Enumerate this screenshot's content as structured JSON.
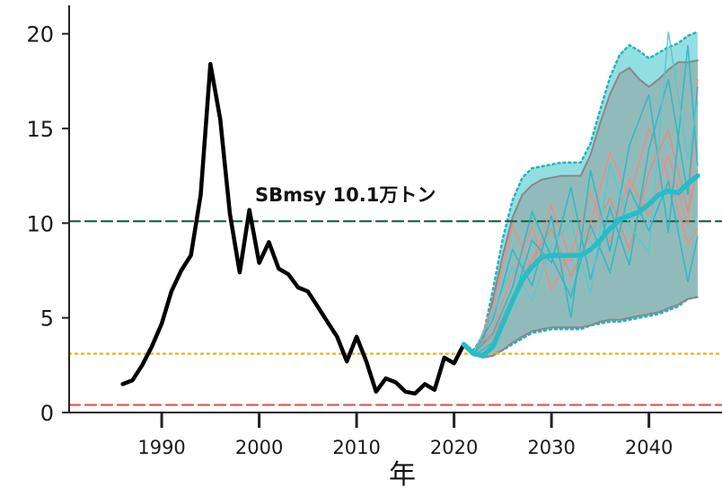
{
  "chart_data": {
    "type": "line",
    "title": "",
    "xlabel": "年",
    "ylabel": "",
    "xlim": [
      1980.5,
      2047.5
    ],
    "ylim": [
      0,
      21.5
    ],
    "x_ticks": [
      1990,
      2000,
      2010,
      2020,
      2030,
      2040
    ],
    "y_ticks": [
      0,
      5,
      10,
      15,
      20
    ],
    "grid": false,
    "annotation": "SBmsy 10.1万トン",
    "reference_lines": [
      {
        "value": 10.1,
        "style": "dashed",
        "color": "#1f5f48"
      },
      {
        "value": 3.1,
        "style": "dotted",
        "color": "#e8b92a"
      },
      {
        "value": 0.4,
        "style": "dashed",
        "color": "#d9534f"
      }
    ],
    "series": [
      {
        "role": "observed",
        "color": "#000000",
        "x": [
          1986,
          1987,
          1988,
          1989,
          1990,
          1991,
          1992,
          1993,
          1994,
          1995,
          1996,
          1997,
          1998,
          1999,
          2000,
          2001,
          2002,
          2003,
          2004,
          2005,
          2006,
          2007,
          2008,
          2009,
          2010,
          2011,
          2012,
          2013,
          2014,
          2015,
          2016,
          2017,
          2018,
          2019,
          2020,
          2021
        ],
        "values": [
          1.5,
          1.7,
          2.5,
          3.5,
          4.7,
          6.4,
          7.5,
          8.3,
          11.5,
          18.4,
          15.5,
          10.5,
          7.4,
          10.7,
          7.9,
          9.0,
          7.6,
          7.3,
          6.6,
          6.4,
          5.6,
          4.8,
          4.0,
          2.7,
          4.0,
          2.7,
          1.1,
          1.8,
          1.6,
          1.1,
          1.0,
          1.5,
          1.2,
          2.9,
          2.6,
          3.6
        ]
      },
      {
        "role": "projection-median",
        "color": "#26bdc8",
        "x": [
          2021,
          2022,
          2023,
          2024,
          2025,
          2026,
          2027,
          2028,
          2029,
          2030,
          2031,
          2032,
          2033,
          2034,
          2035,
          2036,
          2037,
          2038,
          2039,
          2040,
          2041,
          2042,
          2043,
          2044,
          2045
        ],
        "values": [
          3.6,
          3.1,
          3.0,
          3.5,
          4.7,
          5.9,
          7.0,
          7.7,
          8.2,
          8.3,
          8.3,
          8.3,
          8.3,
          8.6,
          9.1,
          9.7,
          10.2,
          10.4,
          10.6,
          11.0,
          11.5,
          11.7,
          11.6,
          12.1,
          12.5
        ]
      },
      {
        "role": "projection-band-outer",
        "color": "#5fd3d8",
        "x": [
          2021,
          2022,
          2023,
          2024,
          2025,
          2026,
          2027,
          2028,
          2029,
          2030,
          2031,
          2032,
          2033,
          2034,
          2035,
          2036,
          2037,
          2038,
          2039,
          2040,
          2041,
          2042,
          2043,
          2044,
          2045
        ],
        "lower": [
          3.6,
          3.1,
          2.9,
          3.0,
          3.3,
          3.6,
          3.9,
          4.2,
          4.3,
          4.4,
          4.4,
          4.4,
          4.4,
          4.6,
          4.7,
          4.8,
          4.8,
          4.9,
          5.0,
          5.1,
          5.2,
          5.4,
          5.6,
          6.0,
          6.1
        ],
        "upper": [
          3.6,
          3.3,
          4.1,
          6.5,
          9.2,
          11.2,
          12.4,
          12.9,
          13.0,
          13.1,
          13.2,
          13.2,
          13.2,
          14.2,
          16.0,
          17.7,
          18.9,
          19.4,
          19.1,
          18.7,
          19.0,
          19.3,
          19.5,
          19.9,
          20.1
        ]
      },
      {
        "role": "projection-band-inner",
        "color": "#8a8a8a",
        "x": [
          2021,
          2022,
          2023,
          2024,
          2025,
          2026,
          2027,
          2028,
          2029,
          2030,
          2031,
          2032,
          2033,
          2034,
          2035,
          2036,
          2037,
          2038,
          2039,
          2040,
          2041,
          2042,
          2043,
          2044,
          2045
        ],
        "lower": [
          3.6,
          3.1,
          2.9,
          3.0,
          3.3,
          3.7,
          4.0,
          4.3,
          4.4,
          4.5,
          4.5,
          4.5,
          4.5,
          4.6,
          4.8,
          4.9,
          4.9,
          5.0,
          5.1,
          5.2,
          5.3,
          5.5,
          5.7,
          6.0,
          6.1
        ],
        "upper": [
          3.6,
          3.2,
          3.8,
          6.0,
          8.3,
          10.3,
          11.5,
          12.0,
          12.3,
          12.4,
          12.5,
          12.5,
          12.5,
          13.6,
          15.3,
          16.8,
          17.9,
          18.2,
          17.6,
          17.2,
          17.6,
          18.1,
          18.5,
          18.5,
          18.6
        ]
      }
    ],
    "sample_trajectories": [
      {
        "color": "#f28b82",
        "x": [
          2022,
          2024,
          2026,
          2028,
          2030,
          2032,
          2034,
          2036,
          2038,
          2040,
          2042,
          2044,
          2045
        ],
        "values": [
          3.1,
          4.5,
          7.2,
          9.8,
          6.5,
          8.4,
          11.6,
          9.0,
          12.3,
          10.4,
          13.6,
          9.8,
          17.6
        ]
      },
      {
        "color": "#f28b82",
        "x": [
          2022,
          2024,
          2026,
          2028,
          2030,
          2032,
          2034,
          2036,
          2038,
          2040,
          2042,
          2044,
          2045
        ],
        "values": [
          3.0,
          5.6,
          9.9,
          7.6,
          10.9,
          8.0,
          10.0,
          13.7,
          11.4,
          15.0,
          12.5,
          8.9,
          9.7
        ]
      },
      {
        "color": "#e98a79",
        "x": [
          2022,
          2024,
          2026,
          2028,
          2030,
          2032,
          2034,
          2036,
          2038,
          2040,
          2042,
          2044,
          2045
        ],
        "values": [
          3.2,
          4.0,
          6.1,
          8.1,
          9.7,
          7.2,
          9.4,
          11.3,
          8.6,
          12.7,
          14.9,
          10.6,
          12.8
        ]
      },
      {
        "color": "#2ab8c4",
        "x": [
          2022,
          2024,
          2026,
          2028,
          2030,
          2032,
          2034,
          2036,
          2038,
          2040,
          2042,
          2044,
          2045
        ],
        "values": [
          3.1,
          4.9,
          8.6,
          6.7,
          10.4,
          5.0,
          12.8,
          8.5,
          14.1,
          16.8,
          9.5,
          19.4,
          13.0
        ]
      },
      {
        "color": "#2ab8c4",
        "x": [
          2022,
          2024,
          2026,
          2028,
          2030,
          2032,
          2034,
          2036,
          2038,
          2040,
          2042,
          2044,
          2045
        ],
        "values": [
          3.0,
          3.7,
          5.8,
          9.1,
          7.9,
          11.9,
          7.0,
          10.8,
          7.8,
          13.9,
          17.6,
          11.5,
          17.2
        ]
      },
      {
        "color": "#5ac8d0",
        "x": [
          2022,
          2024,
          2026,
          2028,
          2030,
          2032,
          2034,
          2036,
          2038,
          2040,
          2042,
          2044,
          2045
        ],
        "values": [
          3.2,
          5.2,
          7.7,
          5.9,
          8.8,
          10.1,
          6.2,
          13.2,
          9.9,
          8.4,
          20.1,
          13.3,
          16.4
        ]
      },
      {
        "color": "#2ab8c4",
        "x": [
          2022,
          2024,
          2026,
          2028,
          2030,
          2032,
          2034,
          2036,
          2038,
          2040,
          2042,
          2044,
          2045
        ],
        "values": [
          3.1,
          4.2,
          6.6,
          10.6,
          8.2,
          6.1,
          9.9,
          7.4,
          11.8,
          9.6,
          12.2,
          6.9,
          9.3
        ]
      }
    ]
  }
}
